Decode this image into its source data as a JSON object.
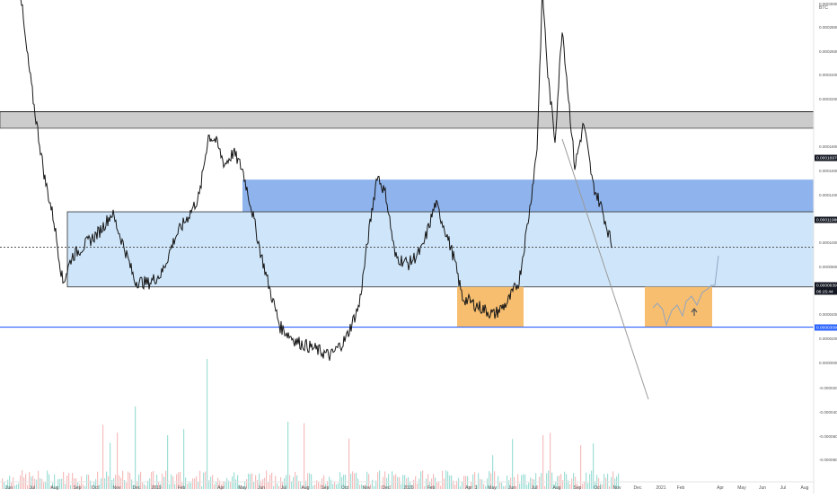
{
  "chart_data": {
    "type": "line",
    "chart_style": "candlestick",
    "currency_label": "BTC",
    "x_tick_labels": [
      "Jun",
      "Jul",
      "Aug",
      "Sep",
      "Oct",
      "Nov",
      "Dec",
      "2019",
      "Feb",
      "Apr",
      "May",
      "Jun",
      "Jul",
      "Aug",
      "Sep",
      "Oct",
      "Nov",
      "Dec",
      "2020",
      "Feb",
      "3",
      "Apr",
      "May",
      "Jun",
      "Jul",
      "Aug",
      "Sep",
      "Oct",
      "Nov",
      "Dec",
      "2021",
      "Feb",
      "Apr",
      "May",
      "Jun",
      "Jul",
      "Aug"
    ],
    "y_tick_labels": [
      "0.0003000",
      "0.0002800",
      "0.0002600",
      "0.0002400",
      "0.0002200",
      "0.0001800",
      "0.0001600",
      "0.0001400",
      "0.0001000",
      "0.0000800",
      "0.0000400",
      "0.0000200",
      "0.0000000",
      "-0.0000200",
      "-0.0000400",
      "-0.0000600",
      "-0.0000800"
    ],
    "y_range": [
      -9e-05,
      0.00031
    ],
    "price_labels": [
      {
        "label": "0.00016970",
        "style": "dark",
        "value": 0.0001697
      },
      {
        "label": "0.00011980",
        "style": "dark",
        "value": 0.0001198
      },
      {
        "label": "0.00006393",
        "style": "dark",
        "value": 6.39e-05
      },
      {
        "label": "06:15:44",
        "style": "dark-sub",
        "value": 6.39e-05
      },
      {
        "label": "0.00003090",
        "style": "blue",
        "value": 3.09e-05
      }
    ],
    "zones": [
      {
        "kind": "resistance",
        "color": "#cccccc",
        "x": [
          "start",
          "end"
        ],
        "y": [
          0.0001697,
          0.0001775
        ]
      },
      {
        "kind": "resistance",
        "color": "#cccccc",
        "x": [
          "start",
          "end"
        ],
        "y": [
          0.000113,
          0.0001198
        ]
      },
      {
        "kind": "supply",
        "color": "#8fb3ec",
        "x": [
          "May 2019",
          "end"
        ],
        "y": [
          7.85e-05,
          9.18e-05
        ]
      },
      {
        "kind": "range",
        "color": "#cfe6fa",
        "x": [
          "Aug 2018",
          "end"
        ],
        "y": [
          4.75e-05,
          7.85e-05
        ]
      },
      {
        "kind": "accumulation",
        "color": "#f7be6f",
        "x": [
          "Mar 2020",
          "Jun 2020"
        ],
        "y": [
          3.1e-05,
          4.75e-05
        ]
      },
      {
        "kind": "projection",
        "color": "#f7be6f",
        "x": [
          "Dec 2020",
          "Mar 2021"
        ],
        "y": [
          3.1e-05,
          4.75e-05
        ]
      }
    ],
    "horizontal_lines": [
      {
        "value": 0.0001697,
        "color": "#222222"
      },
      {
        "value": 0.0001198,
        "color": "#222222"
      },
      {
        "value": 6.39e-05,
        "color": "#555555",
        "dashed": true
      },
      {
        "value": 3.09e-05,
        "color": "#2962ff"
      }
    ],
    "grid": false,
    "legend": "none"
  },
  "colors": {
    "price_line": "#161616",
    "volume_up": "#7fd4c8",
    "volume_down": "#f2a7a7",
    "axis_text": "#555555",
    "dark_label_bg": "#131722",
    "blue_label_bg": "#2962ff"
  }
}
